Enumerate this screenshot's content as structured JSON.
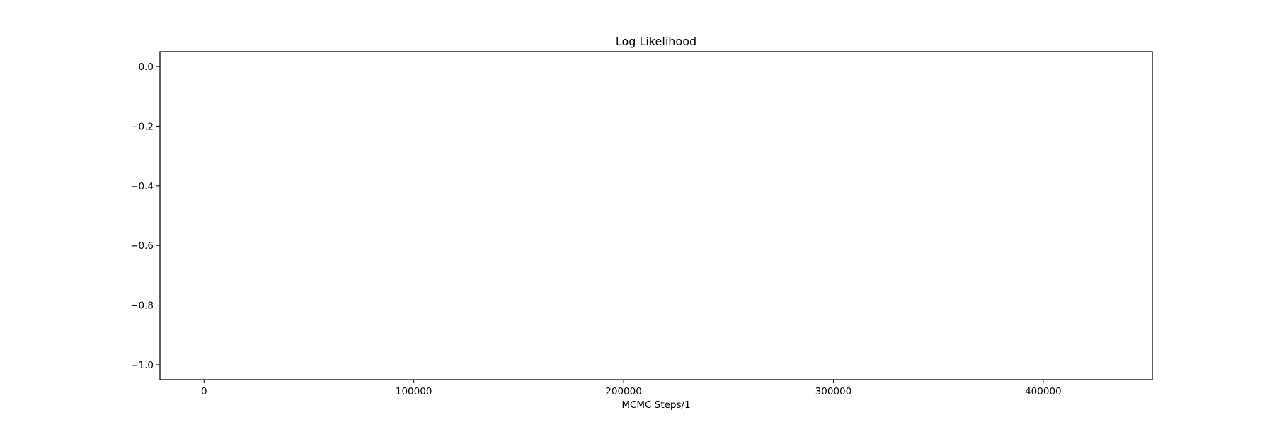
{
  "chart_data": {
    "type": "line",
    "title": "Log Likelihood",
    "xlabel": "MCMC Steps/1",
    "ylabel": "",
    "xlim": [
      -21000,
      452000
    ],
    "ylim": [
      -1.05,
      0.05
    ],
    "x_ticks": [
      0,
      100000,
      200000,
      300000,
      400000
    ],
    "x_tick_labels": [
      "0",
      "100000",
      "200000",
      "300000",
      "400000"
    ],
    "y_ticks": [
      0.0,
      -0.2,
      -0.4,
      -0.6,
      -0.8,
      -1.0
    ],
    "y_tick_labels": [
      "0.0",
      "−0.2",
      "−0.4",
      "−0.6",
      "−0.8",
      "−1.0"
    ],
    "grid": false,
    "legend": "none",
    "series": [],
    "colors": {
      "axes": "#000000",
      "background": "#ffffff"
    }
  }
}
